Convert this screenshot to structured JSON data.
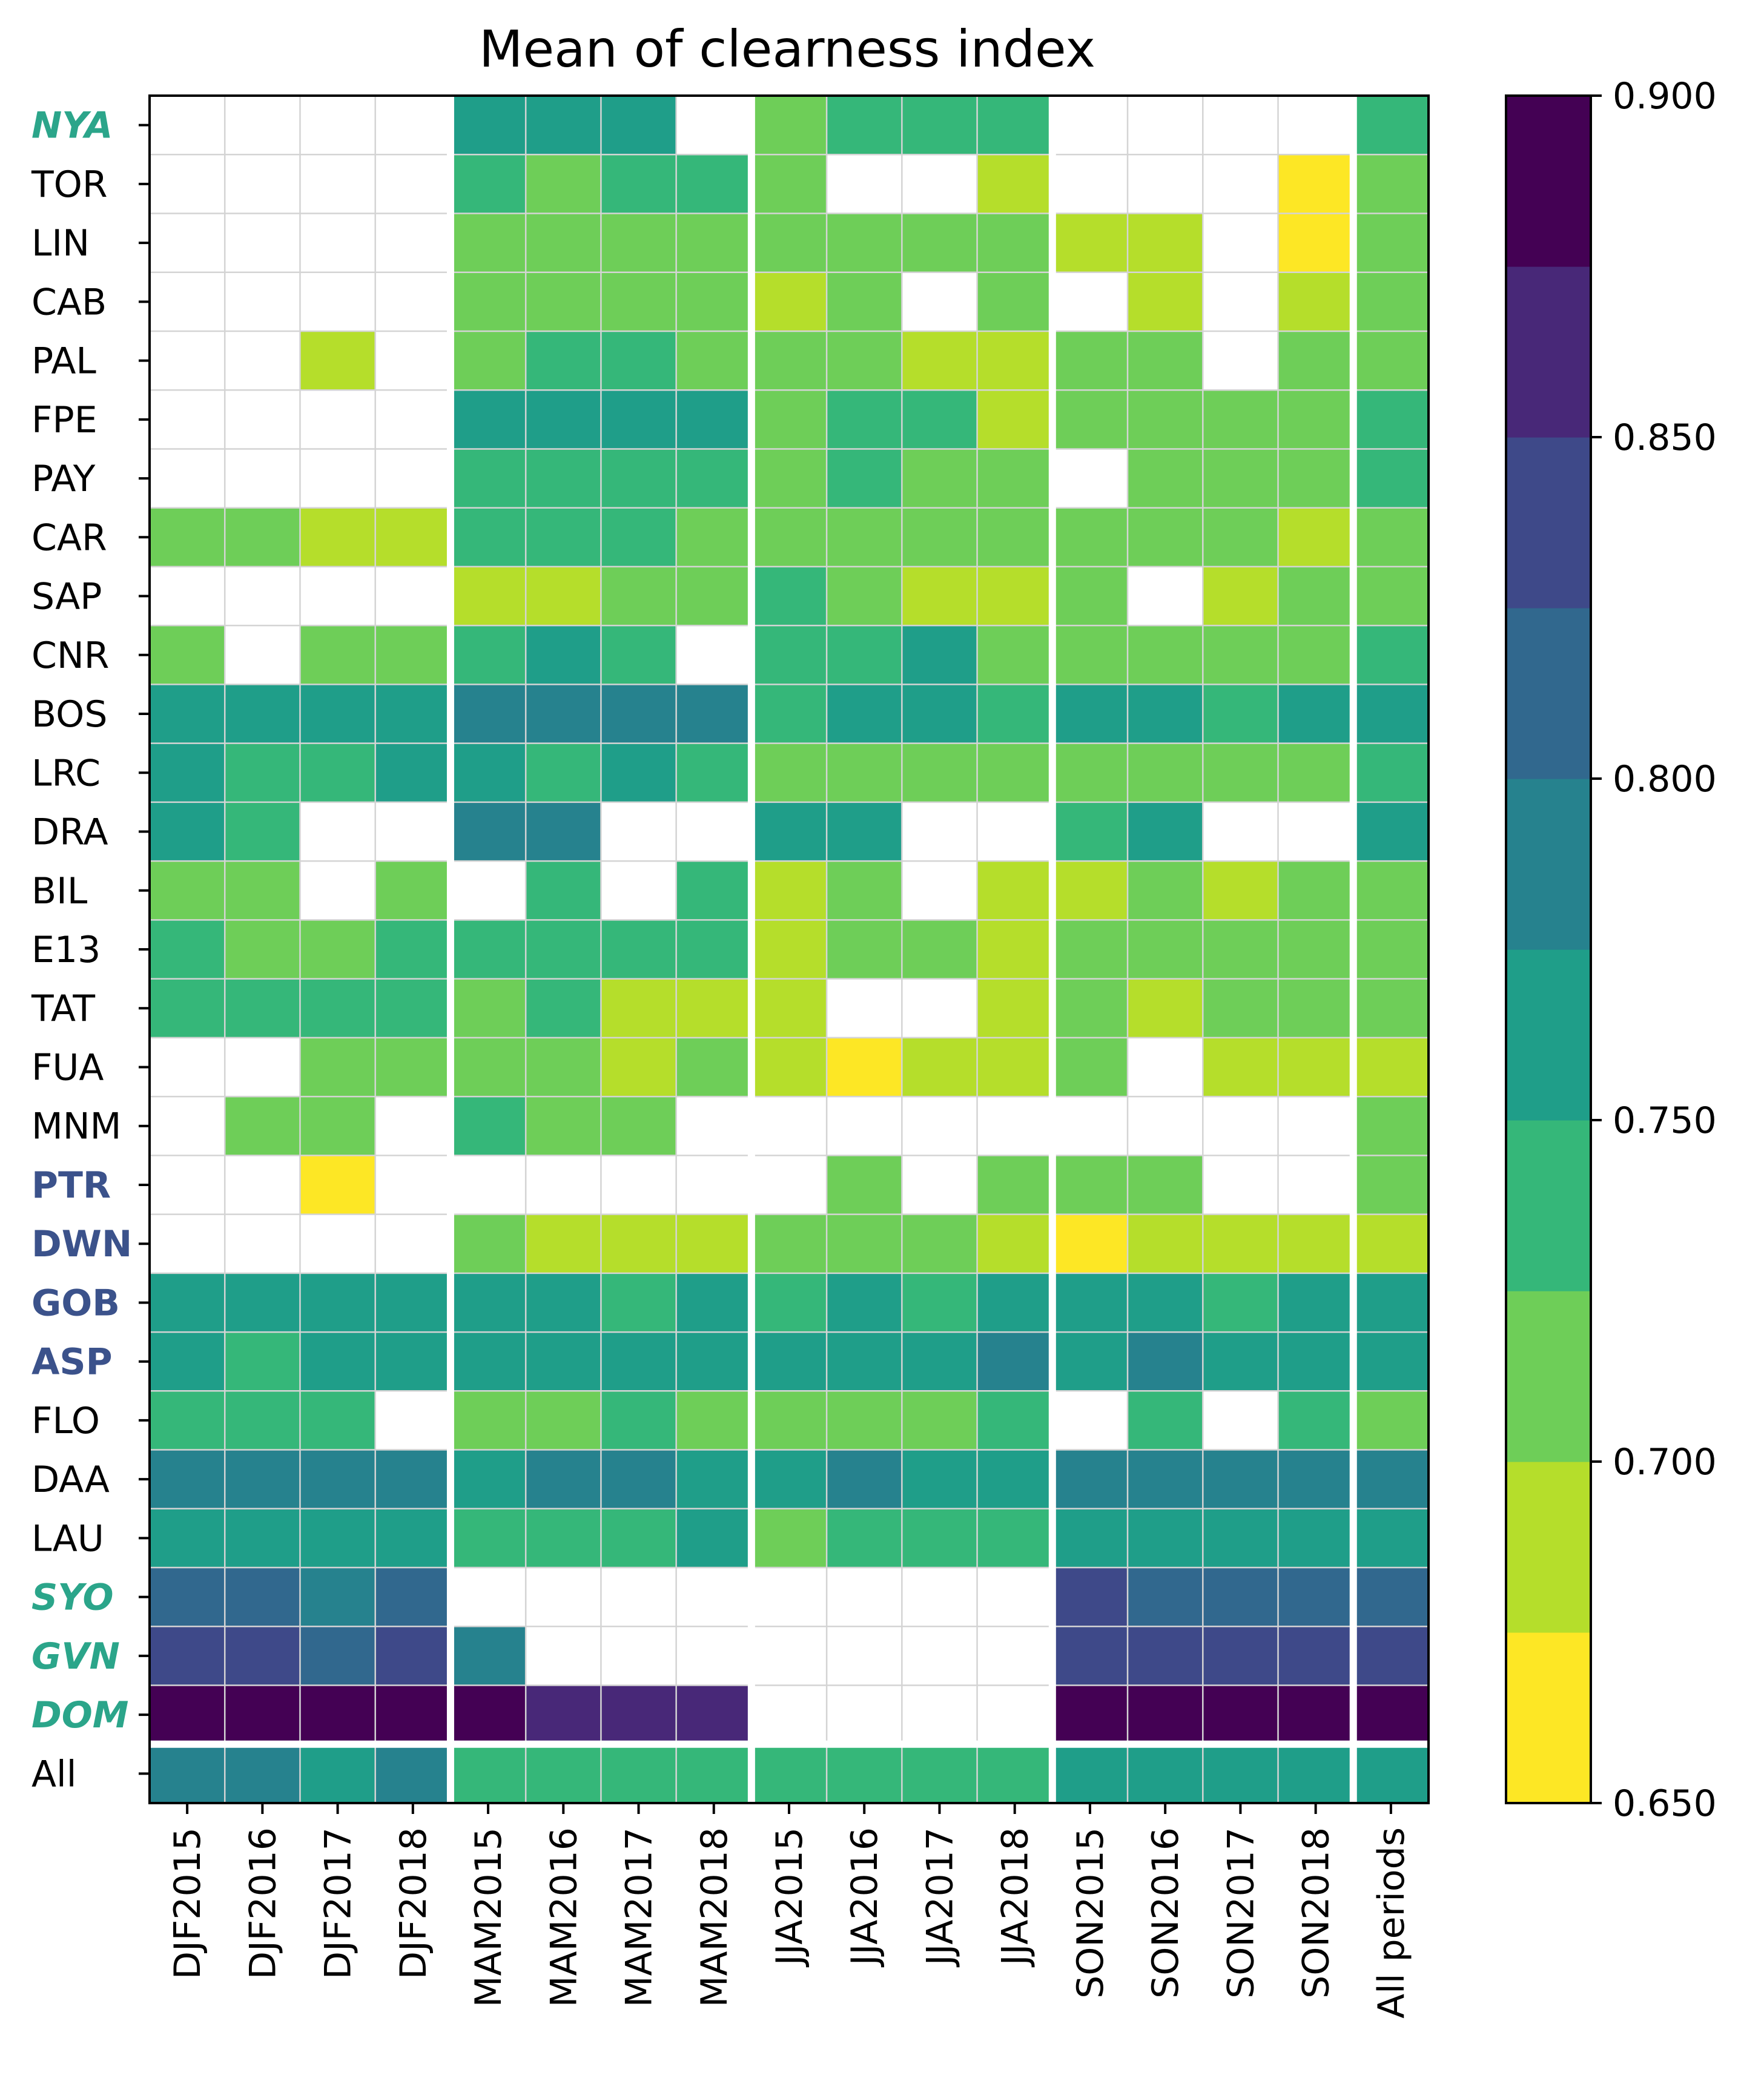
{
  "chart_data": {
    "type": "heatmap",
    "title": "Mean of clearness index",
    "xlabel": "",
    "ylabel": "",
    "columns": [
      "DJF2015",
      "DJF2016",
      "DJF2017",
      "DJF2018",
      "MAM2015",
      "MAM2016",
      "MAM2017",
      "MAM2018",
      "JJA2015",
      "JJA2016",
      "JJA2017",
      "JJA2018",
      "SON2015",
      "SON2016",
      "SON2017",
      "SON2018",
      "All periods"
    ],
    "rows": [
      {
        "label": "NYA",
        "style": "polar"
      },
      {
        "label": "TOR",
        "style": "normal"
      },
      {
        "label": "LIN",
        "style": "normal"
      },
      {
        "label": "CAB",
        "style": "normal"
      },
      {
        "label": "PAL",
        "style": "normal"
      },
      {
        "label": "FPE",
        "style": "normal"
      },
      {
        "label": "PAY",
        "style": "normal"
      },
      {
        "label": "CAR",
        "style": "normal"
      },
      {
        "label": "SAP",
        "style": "normal"
      },
      {
        "label": "CNR",
        "style": "normal"
      },
      {
        "label": "BOS",
        "style": "normal"
      },
      {
        "label": "LRC",
        "style": "normal"
      },
      {
        "label": "DRA",
        "style": "normal"
      },
      {
        "label": "BIL",
        "style": "normal"
      },
      {
        "label": "E13",
        "style": "normal"
      },
      {
        "label": "TAT",
        "style": "normal"
      },
      {
        "label": "FUA",
        "style": "normal"
      },
      {
        "label": "MNM",
        "style": "normal"
      },
      {
        "label": "PTR",
        "style": "bold"
      },
      {
        "label": "DWN",
        "style": "bold"
      },
      {
        "label": "GOB",
        "style": "bold"
      },
      {
        "label": "ASP",
        "style": "bold"
      },
      {
        "label": "FLO",
        "style": "normal"
      },
      {
        "label": "DAA",
        "style": "normal"
      },
      {
        "label": "LAU",
        "style": "normal"
      },
      {
        "label": "SYO",
        "style": "polar"
      },
      {
        "label": "GVN",
        "style": "polar"
      },
      {
        "label": "DOM",
        "style": "polar"
      },
      {
        "label": "All",
        "style": "normal"
      }
    ],
    "values": [
      [
        null,
        null,
        null,
        null,
        0.765,
        0.765,
        0.765,
        null,
        0.71,
        0.735,
        0.735,
        0.735,
        null,
        null,
        null,
        null,
        0.735
      ],
      [
        null,
        null,
        null,
        null,
        0.735,
        0.71,
        0.735,
        0.735,
        0.71,
        null,
        null,
        0.69,
        null,
        null,
        null,
        0.66,
        0.71
      ],
      [
        null,
        null,
        null,
        null,
        0.71,
        0.71,
        0.71,
        0.71,
        0.71,
        0.71,
        0.71,
        0.71,
        0.69,
        0.69,
        null,
        0.66,
        0.71
      ],
      [
        null,
        null,
        null,
        null,
        0.71,
        0.71,
        0.71,
        0.71,
        0.69,
        0.71,
        null,
        0.71,
        null,
        0.69,
        null,
        0.69,
        0.71
      ],
      [
        null,
        null,
        0.69,
        null,
        0.71,
        0.735,
        0.735,
        0.71,
        0.71,
        0.71,
        0.69,
        0.69,
        0.71,
        0.71,
        null,
        0.71,
        0.71
      ],
      [
        null,
        null,
        null,
        null,
        0.765,
        0.765,
        0.765,
        0.765,
        0.71,
        0.735,
        0.735,
        0.69,
        0.71,
        0.71,
        0.71,
        0.71,
        0.735
      ],
      [
        null,
        null,
        null,
        null,
        0.735,
        0.735,
        0.735,
        0.735,
        0.71,
        0.735,
        0.71,
        0.71,
        null,
        0.71,
        0.71,
        0.71,
        0.735
      ],
      [
        0.71,
        0.71,
        0.69,
        0.69,
        0.735,
        0.735,
        0.735,
        0.71,
        0.71,
        0.71,
        0.71,
        0.71,
        0.71,
        0.71,
        0.71,
        0.69,
        0.71
      ],
      [
        null,
        null,
        null,
        null,
        0.69,
        0.69,
        0.71,
        0.71,
        0.735,
        0.71,
        0.69,
        0.69,
        0.71,
        null,
        0.69,
        0.71,
        0.71
      ],
      [
        0.71,
        null,
        0.71,
        0.71,
        0.735,
        0.765,
        0.735,
        null,
        0.735,
        0.735,
        0.765,
        0.71,
        0.71,
        0.71,
        0.71,
        0.71,
        0.735
      ],
      [
        0.765,
        0.765,
        0.765,
        0.765,
        0.79,
        0.79,
        0.79,
        0.79,
        0.735,
        0.765,
        0.765,
        0.735,
        0.765,
        0.765,
        0.735,
        0.765,
        0.765
      ],
      [
        0.765,
        0.735,
        0.735,
        0.765,
        0.765,
        0.735,
        0.765,
        0.735,
        0.71,
        0.71,
        0.71,
        0.71,
        0.71,
        0.71,
        0.71,
        0.71,
        0.735
      ],
      [
        0.765,
        0.735,
        null,
        null,
        0.79,
        0.79,
        null,
        null,
        0.765,
        0.765,
        null,
        null,
        0.735,
        0.765,
        null,
        null,
        0.765
      ],
      [
        0.71,
        0.71,
        null,
        0.71,
        null,
        0.735,
        null,
        0.735,
        0.69,
        0.71,
        null,
        0.69,
        0.69,
        0.71,
        0.69,
        0.71,
        0.71
      ],
      [
        0.735,
        0.71,
        0.71,
        0.735,
        0.735,
        0.735,
        0.735,
        0.735,
        0.69,
        0.71,
        0.71,
        0.69,
        0.71,
        0.71,
        0.71,
        0.71,
        0.71
      ],
      [
        0.735,
        0.735,
        0.735,
        0.735,
        0.71,
        0.735,
        0.69,
        0.69,
        0.69,
        null,
        null,
        0.69,
        0.71,
        0.69,
        0.71,
        0.71,
        0.71
      ],
      [
        null,
        null,
        0.71,
        0.71,
        0.71,
        0.71,
        0.69,
        0.71,
        0.69,
        0.66,
        0.69,
        0.69,
        0.71,
        null,
        0.69,
        0.69,
        0.69
      ],
      [
        null,
        0.71,
        0.71,
        null,
        0.735,
        0.71,
        0.71,
        null,
        null,
        null,
        null,
        null,
        null,
        null,
        null,
        null,
        0.71
      ],
      [
        null,
        null,
        0.66,
        null,
        null,
        null,
        null,
        null,
        null,
        0.71,
        null,
        0.71,
        0.71,
        0.71,
        null,
        null,
        0.71
      ],
      [
        null,
        null,
        null,
        null,
        0.71,
        0.69,
        0.69,
        0.69,
        0.71,
        0.71,
        0.71,
        0.69,
        0.66,
        0.69,
        0.69,
        0.69,
        0.69
      ],
      [
        0.765,
        0.765,
        0.765,
        0.765,
        0.765,
        0.765,
        0.735,
        0.765,
        0.735,
        0.765,
        0.735,
        0.765,
        0.765,
        0.765,
        0.735,
        0.765,
        0.765
      ],
      [
        0.765,
        0.735,
        0.765,
        0.765,
        0.765,
        0.765,
        0.765,
        0.765,
        0.765,
        0.765,
        0.765,
        0.79,
        0.765,
        0.79,
        0.765,
        0.765,
        0.765
      ],
      [
        0.735,
        0.735,
        0.735,
        null,
        0.71,
        0.71,
        0.735,
        0.71,
        0.71,
        0.71,
        0.71,
        0.735,
        null,
        0.735,
        null,
        0.735,
        0.71
      ],
      [
        0.79,
        0.79,
        0.79,
        0.79,
        0.765,
        0.79,
        0.79,
        0.765,
        0.765,
        0.79,
        0.765,
        0.765,
        0.79,
        0.79,
        0.79,
        0.79,
        0.79
      ],
      [
        0.765,
        0.765,
        0.765,
        0.765,
        0.735,
        0.735,
        0.735,
        0.765,
        0.71,
        0.735,
        0.735,
        0.735,
        0.765,
        0.765,
        0.765,
        0.765,
        0.765
      ],
      [
        0.815,
        0.815,
        0.79,
        0.815,
        null,
        null,
        null,
        null,
        null,
        null,
        null,
        null,
        0.84,
        0.815,
        0.815,
        0.815,
        0.815
      ],
      [
        0.84,
        0.84,
        0.815,
        0.84,
        0.79,
        null,
        null,
        null,
        null,
        null,
        null,
        null,
        0.84,
        0.84,
        0.84,
        0.84,
        0.84
      ],
      [
        0.89,
        0.89,
        0.89,
        0.89,
        0.89,
        0.865,
        0.865,
        0.865,
        null,
        null,
        null,
        null,
        0.89,
        0.89,
        0.89,
        0.89,
        0.89
      ],
      [
        0.79,
        0.79,
        0.765,
        0.79,
        0.735,
        0.735,
        0.735,
        0.735,
        0.735,
        0.735,
        0.735,
        0.735,
        0.765,
        0.765,
        0.765,
        0.765,
        0.765
      ]
    ],
    "colorbar": {
      "min": 0.65,
      "max": 0.9,
      "levels": 10,
      "ticks": [
        "0.650",
        "0.700",
        "0.750",
        "0.800",
        "0.850",
        "0.900"
      ],
      "colors": [
        "#fde725",
        "#b5de2b",
        "#6ece58",
        "#35b779",
        "#1f9e89",
        "#26828e",
        "#31688e",
        "#3e4989",
        "#482878",
        "#440154"
      ]
    },
    "column_group_separators_after": [
      3,
      7,
      11,
      15
    ],
    "grid": true
  }
}
